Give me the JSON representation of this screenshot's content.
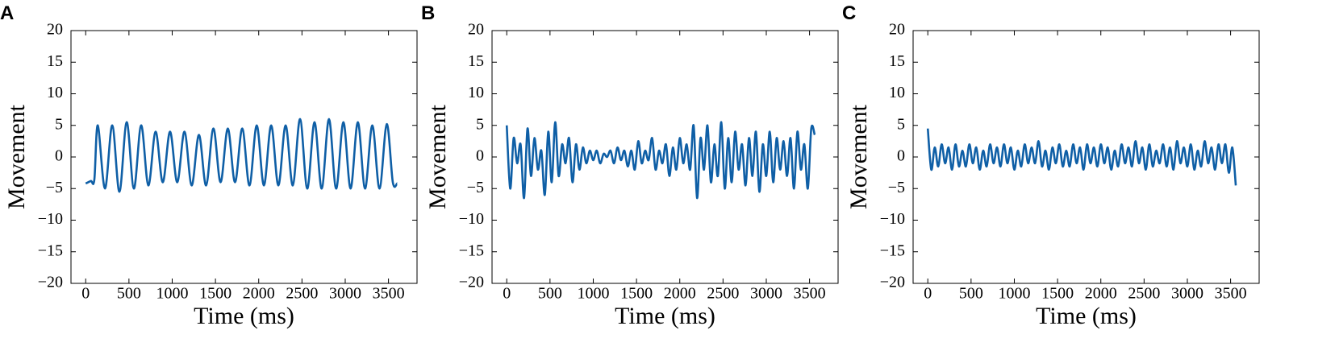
{
  "chart_data": [
    {
      "type": "line",
      "panel_label": "A",
      "xlabel": "Time (ms)",
      "ylabel": "Movement",
      "color": "#0f5fa6",
      "xlim": [
        -170,
        3830
      ],
      "ylim": [
        -20,
        20
      ],
      "xticks": [
        0,
        500,
        1000,
        1500,
        2000,
        2500,
        3000,
        3500
      ],
      "yticks": [
        {
          "value": -20,
          "label": "−20"
        },
        {
          "value": -15,
          "label": "−15"
        },
        {
          "value": -10,
          "label": "−10"
        },
        {
          "value": -5,
          "label": "−5"
        },
        0,
        5,
        10,
        15,
        20
      ],
      "x": [
        0,
        60,
        100,
        140,
        223,
        307,
        390,
        474,
        557,
        641,
        724,
        808,
        891,
        975,
        1058,
        1142,
        1225,
        1309,
        1392,
        1476,
        1559,
        1643,
        1726,
        1810,
        1893,
        1977,
        2060,
        2144,
        2227,
        2311,
        2394,
        2478,
        2561,
        2645,
        2728,
        2812,
        2895,
        2979,
        3062,
        3146,
        3229,
        3313,
        3396,
        3480,
        3550,
        3600
      ],
      "values": [
        -4.2,
        -3.8,
        -3.6,
        5,
        -5,
        5,
        -5.5,
        5.5,
        -5,
        5,
        -4.5,
        4,
        -4,
        4,
        -4,
        4,
        -4.5,
        3.5,
        -4.5,
        4.5,
        -4,
        4.5,
        -4,
        4.5,
        -4.5,
        5,
        -4.5,
        5,
        -4.5,
        5,
        -4.5,
        6,
        -5,
        5.5,
        -5,
        6,
        -5,
        5.5,
        -5,
        5.5,
        -5,
        5,
        -5,
        5.2,
        -4,
        -4.2
      ]
    },
    {
      "type": "line",
      "panel_label": "B",
      "xlabel": "Time (ms)",
      "ylabel": "Movement",
      "color": "#0f5fa6",
      "xlim": [
        -170,
        3830
      ],
      "ylim": [
        -20,
        20
      ],
      "xticks": [
        0,
        500,
        1000,
        1500,
        2000,
        2500,
        3000,
        3500
      ],
      "yticks": [
        {
          "value": -20,
          "label": "−20"
        },
        {
          "value": -15,
          "label": "−15"
        },
        {
          "value": -10,
          "label": "−10"
        },
        {
          "value": -5,
          "label": "−5"
        },
        0,
        5,
        10,
        15,
        20
      ],
      "x": [
        0,
        40,
        80,
        120,
        160,
        200,
        240,
        280,
        320,
        360,
        400,
        440,
        480,
        520,
        560,
        600,
        640,
        680,
        720,
        760,
        800,
        840,
        880,
        920,
        960,
        1000,
        1040,
        1080,
        1120,
        1160,
        1200,
        1240,
        1280,
        1320,
        1360,
        1400,
        1440,
        1480,
        1520,
        1560,
        1600,
        1640,
        1680,
        1720,
        1760,
        1800,
        1840,
        1880,
        1920,
        1960,
        2000,
        2040,
        2080,
        2120,
        2160,
        2200,
        2240,
        2280,
        2320,
        2360,
        2400,
        2440,
        2480,
        2520,
        2560,
        2600,
        2640,
        2680,
        2720,
        2760,
        2800,
        2840,
        2880,
        2920,
        2960,
        3000,
        3040,
        3080,
        3120,
        3160,
        3200,
        3240,
        3280,
        3320,
        3360,
        3400,
        3440,
        3480,
        3520,
        3560
      ],
      "values": [
        5,
        -5,
        3,
        -1,
        2,
        -6.5,
        4.5,
        -3,
        3,
        -2,
        1,
        -6,
        4,
        -4,
        5.5,
        -3,
        2,
        -1,
        3,
        -4,
        2,
        -2,
        1.5,
        -1,
        1,
        -0.5,
        1,
        -1,
        0.5,
        0,
        1,
        -1,
        1.5,
        -0.5,
        1,
        -1.5,
        1,
        -2,
        2.5,
        -1,
        1,
        -0.5,
        3,
        -2,
        1,
        -1,
        2,
        -3,
        1.5,
        -2,
        3,
        -1,
        2,
        -2,
        5,
        -6.5,
        3,
        -2,
        5,
        -4,
        2,
        -3,
        5.5,
        -5,
        3,
        -4,
        4,
        -2,
        2,
        -4.5,
        3,
        -3,
        4,
        -5.5,
        2,
        -3,
        4,
        -4,
        3,
        -2,
        2.5,
        -3,
        3,
        -5,
        4,
        -2,
        2,
        -5,
        4.5,
        3.5
      ]
    },
    {
      "type": "line",
      "panel_label": "C",
      "xlabel": "Time (ms)",
      "ylabel": "Movement",
      "color": "#0f5fa6",
      "xlim": [
        -170,
        3830
      ],
      "ylim": [
        -20,
        20
      ],
      "xticks": [
        0,
        500,
        1000,
        1500,
        2000,
        2500,
        3000,
        3500
      ],
      "yticks": [
        {
          "value": -20,
          "label": "−20"
        },
        {
          "value": -15,
          "label": "−15"
        },
        {
          "value": -10,
          "label": "−10"
        },
        {
          "value": -5,
          "label": "−5"
        },
        0,
        5,
        10,
        15,
        20
      ],
      "x": [
        0,
        40,
        80,
        120,
        160,
        200,
        240,
        280,
        320,
        360,
        400,
        440,
        480,
        520,
        560,
        600,
        640,
        680,
        720,
        760,
        800,
        840,
        880,
        920,
        960,
        1000,
        1040,
        1080,
        1120,
        1160,
        1200,
        1240,
        1280,
        1320,
        1360,
        1400,
        1440,
        1480,
        1520,
        1560,
        1600,
        1640,
        1680,
        1720,
        1760,
        1800,
        1840,
        1880,
        1920,
        1960,
        2000,
        2040,
        2080,
        2120,
        2160,
        2200,
        2240,
        2280,
        2320,
        2360,
        2400,
        2440,
        2480,
        2520,
        2560,
        2600,
        2640,
        2680,
        2720,
        2760,
        2800,
        2840,
        2880,
        2920,
        2960,
        3000,
        3040,
        3080,
        3120,
        3160,
        3200,
        3240,
        3280,
        3320,
        3360,
        3400,
        3440,
        3480,
        3520,
        3560
      ],
      "values": [
        4.5,
        -2,
        1.5,
        -1.5,
        2,
        -1,
        1.5,
        -2,
        2,
        -1.5,
        1,
        -1.5,
        2,
        -1,
        1.5,
        -2,
        1,
        -1.5,
        2,
        -1,
        1.5,
        -1.5,
        2,
        -1,
        1.5,
        -2,
        1,
        -1.5,
        2,
        -1,
        1.5,
        -1,
        2.5,
        -1.5,
        1,
        -2,
        1.5,
        -1,
        2,
        -1.5,
        1,
        -1.5,
        2,
        -1,
        1.5,
        -2,
        2,
        -1,
        1.5,
        -1.5,
        2,
        -1,
        1.5,
        -2,
        1,
        -1.5,
        2,
        -1,
        1.5,
        -1.5,
        2.5,
        -1,
        1.5,
        -2,
        2,
        -1.5,
        1,
        -1,
        2,
        -1.5,
        1.5,
        -2,
        2.5,
        -1,
        1.5,
        -1.5,
        2,
        -2,
        1,
        -1.5,
        2.5,
        -1,
        1.5,
        -2,
        2,
        -1,
        2,
        -2.5,
        1.5,
        -4.5
      ]
    }
  ]
}
